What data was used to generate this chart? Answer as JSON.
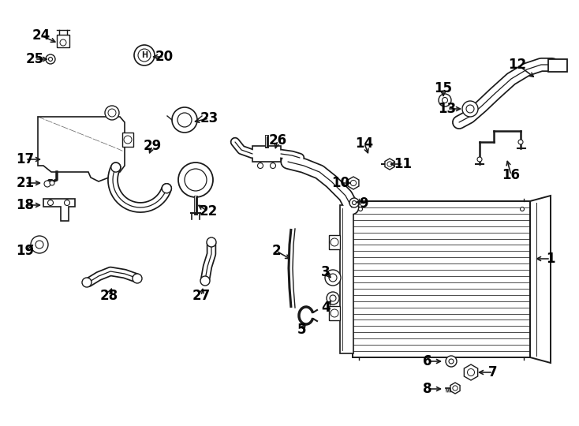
{
  "bg_color": "#ffffff",
  "line_color": "#1a1a1a",
  "text_color": "#000000",
  "label_data": [
    [
      "1",
      698,
      328,
      676,
      328
    ],
    [
      "2",
      350,
      318,
      371,
      330
    ],
    [
      "3",
      413,
      345,
      422,
      355
    ],
    [
      "4",
      413,
      390,
      422,
      378
    ],
    [
      "5",
      382,
      418,
      390,
      408
    ],
    [
      "6",
      542,
      458,
      563,
      458
    ],
    [
      "7",
      625,
      472,
      603,
      472
    ],
    [
      "8",
      542,
      493,
      563,
      493
    ],
    [
      "9",
      461,
      258,
      448,
      255
    ],
    [
      "10",
      432,
      232,
      448,
      232
    ],
    [
      "11",
      511,
      208,
      491,
      208
    ],
    [
      "12",
      656,
      82,
      680,
      100
    ],
    [
      "13",
      567,
      138,
      588,
      138
    ],
    [
      "14",
      462,
      182,
      468,
      198
    ],
    [
      "15",
      562,
      112,
      562,
      126
    ],
    [
      "16",
      648,
      222,
      642,
      200
    ],
    [
      "17",
      32,
      202,
      55,
      202
    ],
    [
      "18",
      32,
      260,
      55,
      260
    ],
    [
      "19",
      32,
      318,
      45,
      308
    ],
    [
      "20",
      208,
      72,
      190,
      72
    ],
    [
      "21",
      32,
      232,
      55,
      232
    ],
    [
      "22",
      264,
      268,
      248,
      258
    ],
    [
      "23",
      265,
      150,
      243,
      155
    ],
    [
      "24",
      52,
      45,
      74,
      55
    ],
    [
      "25",
      44,
      75,
      64,
      75
    ],
    [
      "26",
      352,
      178,
      348,
      192
    ],
    [
      "27",
      255,
      375,
      258,
      362
    ],
    [
      "28",
      138,
      375,
      143,
      362
    ],
    [
      "29",
      193,
      185,
      188,
      198
    ]
  ]
}
